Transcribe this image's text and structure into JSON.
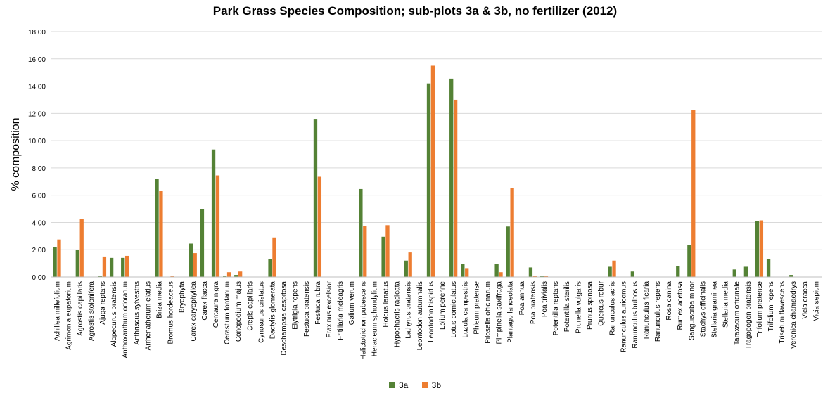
{
  "chart_data": {
    "type": "bar",
    "title": "Park Grass Species Composition; sub-plots 3a & 3b, no fertilizer (2012)",
    "xlabel": "",
    "ylabel": "% composition",
    "ylim": [
      0,
      18
    ],
    "yticks": [
      "0.00",
      "2.00",
      "4.00",
      "6.00",
      "8.00",
      "10.00",
      "12.00",
      "14.00",
      "16.00",
      "18.00"
    ],
    "grid": true,
    "legend_position": "bottom",
    "categories": [
      "Achillea millefolium",
      "Agrimonia eupatorium",
      "Agrostis capillaris",
      "Agrostis stolonifera",
      "Ajuga reptans",
      "Alopecurus pratensis",
      "Anthoxanthum odoratum",
      "Anthriscus sylvestris",
      "Arrhenatherum elatius",
      "Briza media",
      "Bromus hordeaceus",
      "Bryophyta",
      "Carex caryophyllea",
      "Carex flacca",
      "Centaura nigra",
      "Cerastium fontanum",
      "Conopodium majus",
      "Crepis capillaris",
      "Cynosurus cristatus",
      "Dactylis glomerata",
      "Deschampsia cespitosa",
      "Elytrigia repens",
      "Festuca pratensis",
      "Festuca rubra",
      "Fraxinus excelsior",
      "Fritillaria meleagris",
      "Galium verum",
      "Helictotrichon pubescens",
      "Heracleum sphondylium",
      "Holcus lanatus",
      "Hypochaeris radicata",
      "Lathyrus pratensis",
      "Leontodon autumnalis",
      "Leontodon hispidus",
      "Lolium perenne",
      "Lotus corniculatus",
      "Luzula campestris",
      "Phleum pratense",
      "Pilosella officinarum",
      "Pimpinella saxifraga",
      "Plantago lanceolata",
      "Poa annua",
      "Poa pratensis",
      "Poa trivialis",
      "Potentilla reptans",
      "Potentilla sterilis",
      "Prunella vulgaris",
      "Prunus spinosa",
      "Quercus robur",
      "Ranunculus acris",
      "Ranunculus auricomus",
      "Ranunculus bulbosus",
      "Ranunculus ficaria",
      "Ranunculus repens",
      "Rosa canina",
      "Rumex acetosa",
      "Sanguisorba minor",
      "Stachys officinalis",
      "Stellaria graminea",
      "Stellaria media",
      "Taraxacum officinale",
      "Tragopogon pratensis",
      "Trifolium pratense",
      "Trifolium repens",
      "Trisetum flavescens",
      "Veronica chamaedrys",
      "Vicia cracca",
      "Vicia sepium"
    ],
    "series": [
      {
        "name": "3a",
        "color": "#548235",
        "values": [
          2.2,
          0,
          2.0,
          0,
          0.05,
          1.4,
          1.4,
          0,
          0,
          7.2,
          0,
          0,
          2.45,
          5.0,
          9.35,
          0.05,
          0.15,
          0,
          0,
          1.3,
          0,
          0,
          0,
          11.6,
          0,
          0,
          0,
          6.45,
          0,
          2.95,
          0,
          1.2,
          0,
          14.2,
          0,
          14.55,
          0.95,
          0,
          0,
          0.95,
          3.7,
          0,
          0.7,
          0.05,
          0,
          0,
          0,
          0,
          0,
          0.75,
          0,
          0.4,
          0,
          0,
          0,
          0.8,
          2.35,
          0,
          0,
          0,
          0.55,
          0.75,
          4.1,
          1.3,
          0,
          0.15,
          0,
          0
        ]
      },
      {
        "name": "3b",
        "color": "#ED7D31",
        "values": [
          2.75,
          0,
          4.25,
          0,
          1.5,
          0,
          1.55,
          0,
          0,
          6.3,
          0.05,
          0,
          1.75,
          0,
          7.45,
          0.35,
          0.4,
          0,
          0,
          2.9,
          0,
          0,
          0,
          7.35,
          0,
          0,
          0,
          3.75,
          0,
          3.8,
          0,
          1.8,
          0,
          15.5,
          0,
          13.0,
          0.65,
          0,
          0,
          0.35,
          6.55,
          0,
          0.1,
          0.1,
          0,
          0,
          0,
          0,
          0,
          1.2,
          0,
          0,
          0,
          0,
          0,
          0,
          12.25,
          0,
          0,
          0,
          0,
          0,
          4.15,
          0,
          0,
          0,
          0,
          0
        ]
      }
    ]
  }
}
